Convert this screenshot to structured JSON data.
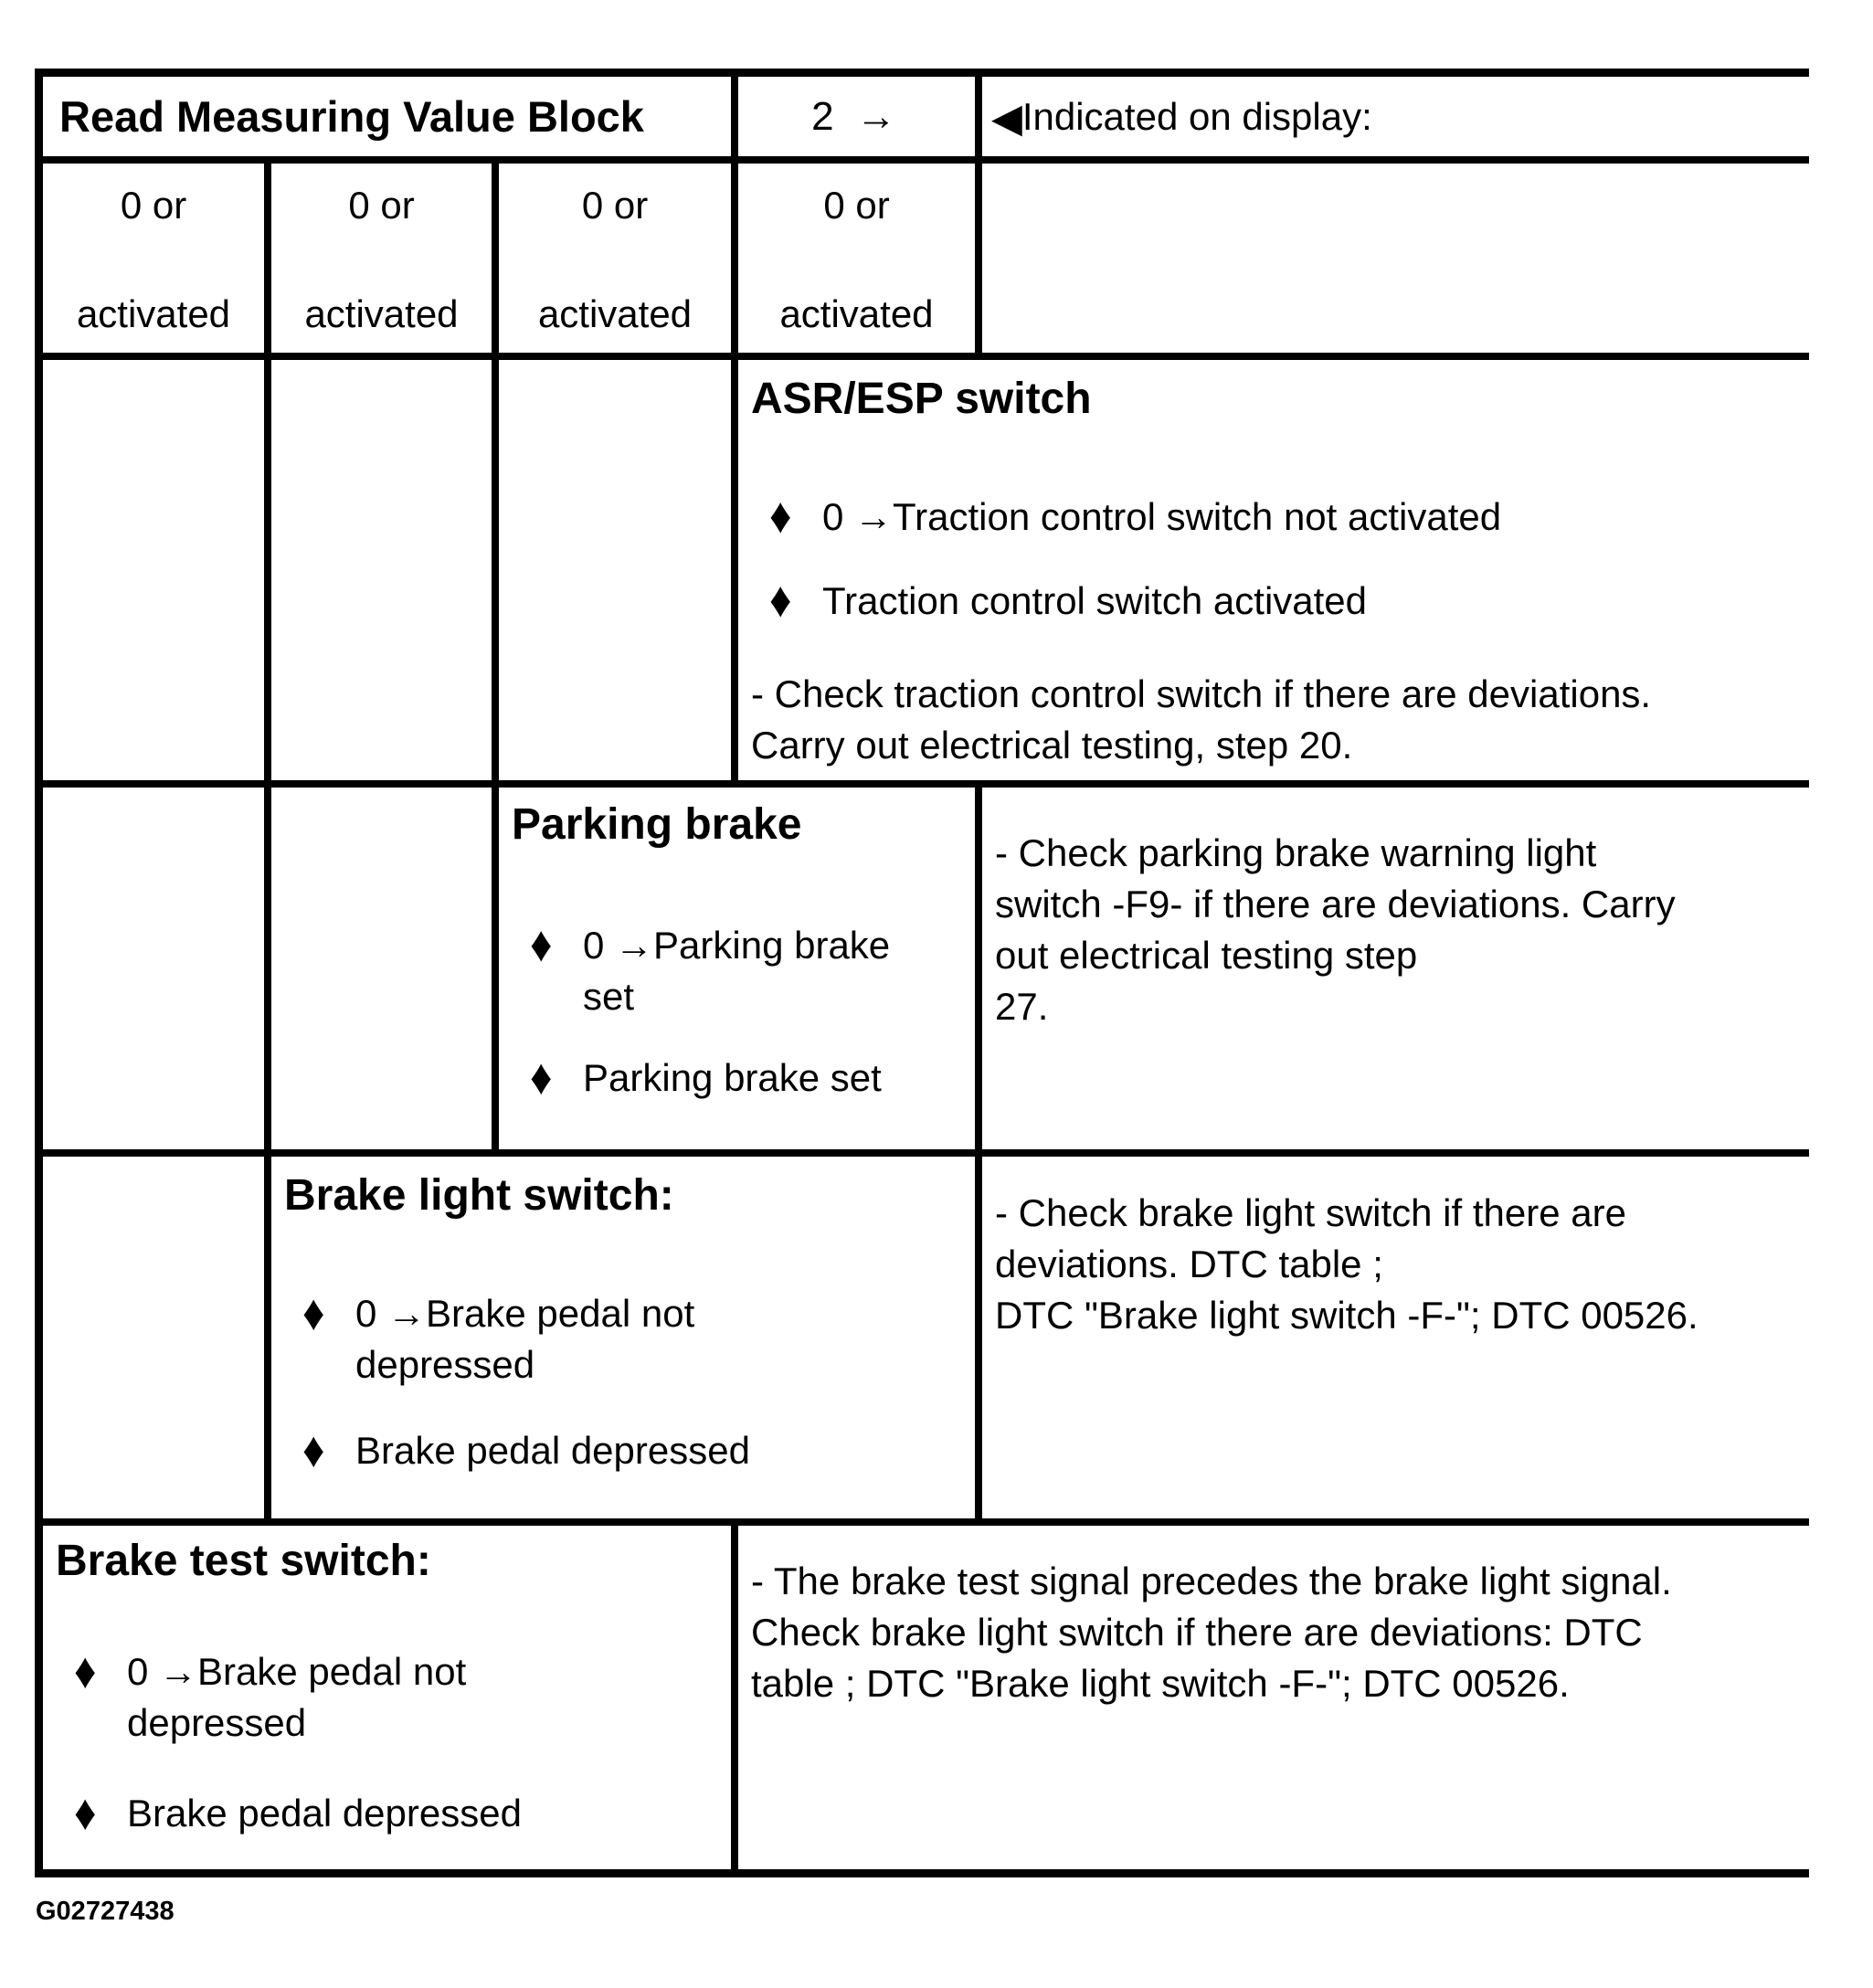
{
  "glyphs": {
    "bullet": "♦",
    "pointer": "◀"
  },
  "header": {
    "title": "Read Measuring Value Block",
    "block": "2 →",
    "display_label": "Indicated on display:"
  },
  "values_row": {
    "cells": [
      {
        "top": "0 or",
        "bottom": "activated"
      },
      {
        "top": "0 or",
        "bottom": "activated"
      },
      {
        "top": "0 or",
        "bottom": "activated"
      },
      {
        "top": "0 or",
        "bottom": "activated"
      }
    ]
  },
  "sections": {
    "asr": {
      "title": "ASR/ESP switch",
      "bullets": [
        "0 →Traction control switch not activated",
        "Traction control switch activated"
      ],
      "note": "- Check traction control switch if there are deviations.\nCarry out electrical testing, step 20."
    },
    "parking": {
      "title": "Parking brake",
      "bullets": [
        "0 →Parking brake\nset",
        "Parking brake set"
      ],
      "note": "- Check parking brake warning light\nswitch -F9- if there are deviations. Carry\nout electrical testing step\n27."
    },
    "brake_light": {
      "title": "Brake light switch:",
      "bullets": [
        "0 →Brake pedal not\ndepressed",
        "Brake pedal depressed"
      ],
      "note": "- Check brake light switch if there are\ndeviations. DTC table ;\nDTC \"Brake light switch -F-\"; DTC 00526."
    },
    "brake_test": {
      "title": "Brake test switch:",
      "bullets": [
        "0 →Brake pedal not\ndepressed",
        "Brake pedal depressed"
      ],
      "note": "- The brake test signal precedes the brake light signal.\nCheck brake light switch if there are deviations: DTC\ntable ; DTC \"Brake light switch -F-\"; DTC 00526."
    }
  },
  "footer": {
    "graphic_id": "G02727438"
  }
}
